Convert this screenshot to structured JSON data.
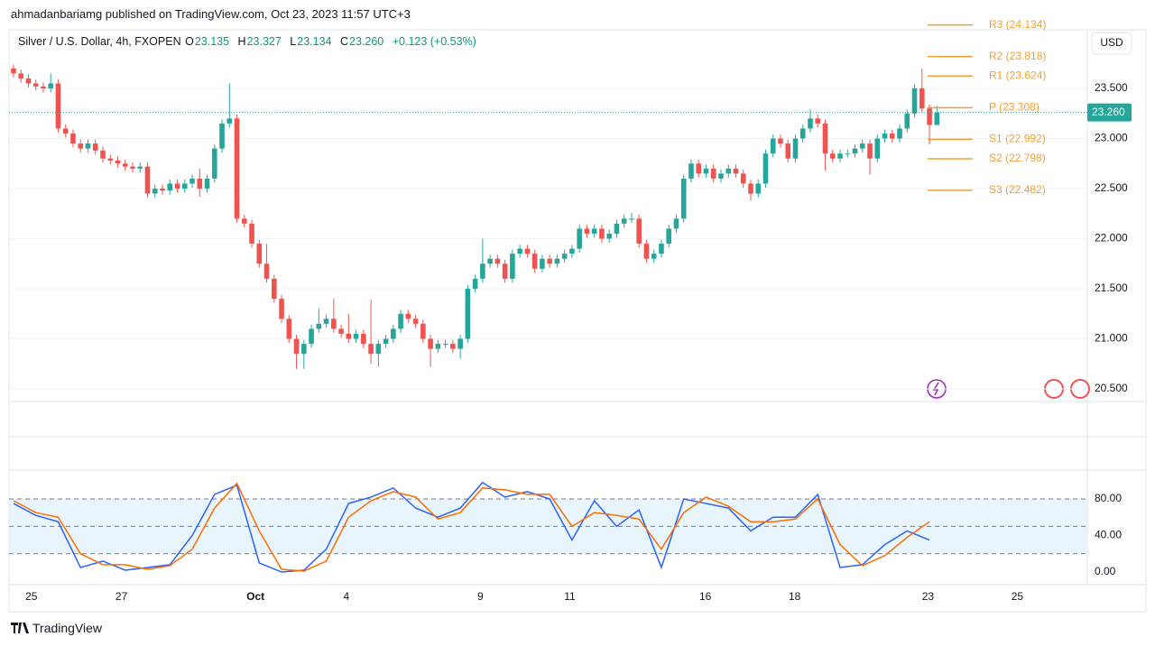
{
  "header": {
    "published": "ahmadanbariamg published on TradingView.com, Oct 23, 2023 11:57 UTC+3",
    "footer": "TradingView"
  },
  "chart_data": [
    {
      "type": "candlestick",
      "title": "Silver / U.S. Dollar, 4h, FXOPEN",
      "ohlc": [
        {
          "label": "O",
          "value": "23.135"
        },
        {
          "label": "H",
          "value": "23.327"
        },
        {
          "label": "L",
          "value": "23.134"
        },
        {
          "label": "C",
          "value": "23.260"
        }
      ],
      "change": "+0.123 (+0.53%)",
      "currency": "USD",
      "up_color": "#26a69a",
      "down_color": "#ef5350",
      "xlim": [
        -0.6,
        144.2
      ],
      "ylim": [
        20.374,
        24.086
      ],
      "yticks": [
        {
          "value": 20.5,
          "label": "20.500"
        },
        {
          "value": 21,
          "label": "21.000"
        },
        {
          "value": 21.5,
          "label": "21.500"
        },
        {
          "value": 22,
          "label": "22.000"
        },
        {
          "value": 22.5,
          "label": "22.500"
        },
        {
          "value": 23,
          "label": "23.000"
        },
        {
          "value": 23.5,
          "label": "23.500"
        }
      ],
      "last_price": {
        "value": 23.26,
        "label": "23.260"
      },
      "pivot_color": "#f0a030",
      "pivots": [
        {
          "label": "R3 (24.134)",
          "value": 24.134
        },
        {
          "label": "R2 (23.818)",
          "value": 23.818
        },
        {
          "label": "R1 (23.624)",
          "value": 23.624
        },
        {
          "label": "P (23.308)",
          "value": 23.308
        },
        {
          "label": "S1 (22.992)",
          "value": 22.992
        },
        {
          "label": "S2 (22.798)",
          "value": 22.798
        },
        {
          "label": "S3 (22.482)",
          "value": 22.482
        }
      ],
      "candles": [
        [
          23.7,
          23.74,
          23.61,
          23.65
        ],
        [
          23.65,
          23.69,
          23.56,
          23.6
        ],
        [
          23.6,
          23.64,
          23.51,
          23.55
        ],
        [
          23.55,
          23.59,
          23.48,
          23.52
        ],
        [
          23.52,
          23.56,
          23.46,
          23.5
        ],
        [
          23.5,
          23.65,
          23.46,
          23.55
        ],
        [
          23.55,
          23.59,
          23.06,
          23.1
        ],
        [
          23.1,
          23.14,
          23.01,
          23.05
        ],
        [
          23.05,
          23.09,
          22.91,
          22.95
        ],
        [
          22.95,
          22.99,
          22.86,
          22.9
        ],
        [
          22.9,
          22.99,
          22.86,
          22.95
        ],
        [
          22.95,
          22.99,
          22.84,
          22.88
        ],
        [
          22.88,
          22.92,
          22.76,
          22.8
        ],
        [
          22.8,
          22.84,
          22.74,
          22.78
        ],
        [
          22.78,
          22.82,
          22.71,
          22.75
        ],
        [
          22.75,
          22.79,
          22.68,
          22.72
        ],
        [
          22.72,
          22.76,
          22.66,
          22.7
        ],
        [
          22.7,
          22.76,
          22.66,
          22.72
        ],
        [
          22.72,
          22.76,
          22.41,
          22.45
        ],
        [
          22.45,
          22.54,
          22.41,
          22.5
        ],
        [
          22.5,
          22.54,
          22.44,
          22.48
        ],
        [
          22.48,
          22.59,
          22.44,
          22.55
        ],
        [
          22.55,
          22.59,
          22.46,
          22.5
        ],
        [
          22.5,
          22.59,
          22.46,
          22.55
        ],
        [
          22.55,
          22.64,
          22.51,
          22.6
        ],
        [
          22.6,
          22.7,
          22.42,
          22.5
        ],
        [
          22.5,
          22.64,
          22.46,
          22.6
        ],
        [
          22.6,
          22.94,
          22.56,
          22.9
        ],
        [
          22.9,
          23.19,
          22.86,
          23.15
        ],
        [
          23.15,
          23.55,
          23.11,
          23.2
        ],
        [
          23.2,
          23.24,
          22.16,
          22.2
        ],
        [
          22.2,
          22.24,
          22.11,
          22.15
        ],
        [
          22.15,
          22.19,
          21.91,
          21.95
        ],
        [
          21.95,
          21.99,
          21.71,
          21.75
        ],
        [
          21.75,
          21.95,
          21.56,
          21.6
        ],
        [
          21.6,
          21.64,
          21.36,
          21.4
        ],
        [
          21.4,
          21.44,
          21.16,
          21.2
        ],
        [
          21.2,
          21.24,
          20.96,
          21.0
        ],
        [
          21.0,
          21.04,
          20.7,
          20.85
        ],
        [
          20.85,
          20.99,
          20.7,
          20.95
        ],
        [
          20.95,
          21.14,
          20.91,
          21.1
        ],
        [
          21.1,
          21.3,
          21.06,
          21.15
        ],
        [
          21.15,
          21.24,
          21.11,
          21.2
        ],
        [
          21.2,
          21.4,
          21.06,
          21.1
        ],
        [
          21.1,
          21.14,
          21.01,
          21.05
        ],
        [
          21.05,
          21.25,
          20.96,
          21.0
        ],
        [
          21.0,
          21.09,
          20.96,
          21.05
        ],
        [
          21.05,
          21.09,
          20.91,
          20.95
        ],
        [
          20.95,
          21.39,
          20.75,
          20.85
        ],
        [
          20.85,
          20.99,
          20.72,
          20.95
        ],
        [
          20.95,
          21.04,
          20.91,
          21.0
        ],
        [
          21.0,
          21.14,
          20.96,
          21.1
        ],
        [
          21.1,
          21.29,
          21.06,
          21.25
        ],
        [
          21.25,
          21.29,
          21.16,
          21.2
        ],
        [
          21.2,
          21.24,
          21.11,
          21.15
        ],
        [
          21.15,
          21.19,
          20.96,
          21.0
        ],
        [
          21.0,
          21.04,
          20.72,
          20.9
        ],
        [
          20.9,
          20.99,
          20.86,
          20.95
        ],
        [
          20.95,
          20.99,
          20.91,
          20.95
        ],
        [
          20.95,
          20.99,
          20.86,
          20.9
        ],
        [
          20.9,
          21.04,
          20.8,
          21.0
        ],
        [
          21.0,
          21.54,
          20.96,
          21.5
        ],
        [
          21.5,
          21.64,
          21.46,
          21.6
        ],
        [
          21.6,
          22.0,
          21.56,
          21.75
        ],
        [
          21.75,
          21.84,
          21.71,
          21.8
        ],
        [
          21.8,
          21.84,
          21.71,
          21.75
        ],
        [
          21.75,
          21.79,
          21.56,
          21.6
        ],
        [
          21.6,
          21.89,
          21.56,
          21.85
        ],
        [
          21.85,
          21.94,
          21.81,
          21.9
        ],
        [
          21.9,
          21.94,
          21.81,
          21.85
        ],
        [
          21.85,
          21.89,
          21.66,
          21.7
        ],
        [
          21.7,
          21.84,
          21.66,
          21.8
        ],
        [
          21.8,
          21.84,
          21.71,
          21.75
        ],
        [
          21.75,
          21.84,
          21.71,
          21.8
        ],
        [
          21.8,
          21.89,
          21.76,
          21.85
        ],
        [
          21.85,
          21.94,
          21.81,
          21.9
        ],
        [
          21.9,
          22.14,
          21.86,
          22.1
        ],
        [
          22.1,
          22.14,
          22.01,
          22.05
        ],
        [
          22.05,
          22.14,
          22.01,
          22.1
        ],
        [
          22.1,
          22.14,
          21.96,
          22.0
        ],
        [
          22.0,
          22.09,
          21.96,
          22.05
        ],
        [
          22.05,
          22.19,
          22.01,
          22.15
        ],
        [
          22.15,
          22.24,
          22.11,
          22.2
        ],
        [
          22.2,
          22.26,
          22.16,
          22.2
        ],
        [
          22.2,
          22.24,
          21.91,
          21.95
        ],
        [
          21.95,
          21.99,
          21.76,
          21.8
        ],
        [
          21.8,
          21.89,
          21.76,
          21.85
        ],
        [
          21.85,
          21.99,
          21.81,
          21.95
        ],
        [
          21.95,
          22.14,
          21.91,
          22.1
        ],
        [
          22.1,
          22.24,
          22.06,
          22.2
        ],
        [
          22.2,
          22.64,
          22.16,
          22.6
        ],
        [
          22.6,
          22.79,
          22.56,
          22.75
        ],
        [
          22.75,
          22.79,
          22.61,
          22.65
        ],
        [
          22.65,
          22.74,
          22.61,
          22.7
        ],
        [
          22.7,
          22.74,
          22.56,
          22.6
        ],
        [
          22.6,
          22.69,
          22.56,
          22.65
        ],
        [
          22.65,
          22.74,
          22.61,
          22.7
        ],
        [
          22.7,
          22.74,
          22.61,
          22.65
        ],
        [
          22.65,
          22.69,
          22.51,
          22.55
        ],
        [
          22.55,
          22.59,
          22.38,
          22.45
        ],
        [
          22.45,
          22.59,
          22.41,
          22.55
        ],
        [
          22.55,
          22.89,
          22.51,
          22.85
        ],
        [
          22.85,
          23.04,
          22.81,
          23.0
        ],
        [
          23.0,
          23.04,
          22.91,
          22.95
        ],
        [
          22.95,
          22.99,
          22.76,
          22.8
        ],
        [
          22.8,
          23.04,
          22.76,
          23.0
        ],
        [
          23.0,
          23.14,
          22.96,
          23.1
        ],
        [
          23.1,
          23.29,
          23.06,
          23.2
        ],
        [
          23.2,
          23.24,
          23.11,
          23.15
        ],
        [
          23.15,
          23.19,
          22.68,
          22.85
        ],
        [
          22.85,
          22.89,
          22.76,
          22.8
        ],
        [
          22.8,
          22.89,
          22.76,
          22.85
        ],
        [
          22.85,
          22.89,
          22.81,
          22.85
        ],
        [
          22.85,
          22.94,
          22.81,
          22.9
        ],
        [
          22.9,
          22.99,
          22.86,
          22.95
        ],
        [
          22.95,
          22.99,
          22.64,
          22.8
        ],
        [
          22.8,
          23.04,
          22.76,
          23.0
        ],
        [
          23.0,
          23.09,
          22.96,
          23.05
        ],
        [
          23.05,
          23.09,
          22.96,
          23.0
        ],
        [
          23.0,
          23.14,
          22.96,
          23.1
        ],
        [
          23.1,
          23.29,
          23.06,
          23.25
        ],
        [
          23.25,
          23.54,
          23.21,
          23.5
        ],
        [
          23.5,
          23.7,
          23.26,
          23.3
        ],
        [
          23.3,
          23.34,
          22.94,
          23.135
        ],
        [
          23.135,
          23.327,
          23.134,
          23.26
        ]
      ]
    },
    {
      "type": "line",
      "xlim": [
        -0.6,
        144.2
      ],
      "ylim": [
        -13.8,
        110.6
      ],
      "yticks": [
        {
          "value": 0,
          "label": "0.00"
        },
        {
          "value": 40,
          "label": "40.00"
        },
        {
          "value": 80,
          "label": "80.00"
        }
      ],
      "xticks": [
        {
          "value": 2.4,
          "label": "25"
        },
        {
          "value": 14.5,
          "label": "27"
        },
        {
          "value": 32.5,
          "label": "Oct"
        },
        {
          "value": 44.7,
          "label": "4"
        },
        {
          "value": 62.7,
          "label": "9"
        },
        {
          "value": 74.7,
          "label": "11"
        },
        {
          "value": 92.9,
          "label": "16"
        },
        {
          "value": 104.9,
          "label": "18"
        },
        {
          "value": 122.8,
          "label": "23"
        },
        {
          "value": 134.8,
          "label": "25"
        }
      ],
      "band": [
        20,
        80
      ],
      "band_color": "#e3f2fd",
      "hlines": [
        20,
        50,
        80
      ],
      "x": [
        0,
        3,
        6,
        9,
        12,
        15,
        18,
        21,
        24,
        27,
        30,
        33,
        36,
        39,
        42,
        45,
        48,
        51,
        54,
        57,
        60,
        63,
        66,
        69,
        72,
        75,
        78,
        81,
        84,
        87,
        90,
        93,
        96,
        99,
        102,
        105,
        108,
        111,
        114,
        117,
        120,
        123
      ],
      "series": [
        {
          "color": "#2962ff",
          "values": [
            75,
            62,
            55,
            5,
            12,
            2,
            5,
            8,
            40,
            85,
            95,
            10,
            0,
            2,
            25,
            75,
            82,
            92,
            70,
            60,
            70,
            98,
            82,
            88,
            80,
            35,
            78,
            50,
            68,
            5,
            80,
            75,
            70,
            45,
            60,
            60,
            85,
            5,
            8,
            30,
            45,
            35
          ]
        },
        {
          "color": "#ff6d00",
          "values": [
            78,
            65,
            60,
            20,
            8,
            8,
            3,
            7,
            25,
            70,
            97,
            45,
            3,
            1,
            12,
            60,
            78,
            88,
            82,
            58,
            65,
            92,
            90,
            85,
            85,
            50,
            65,
            62,
            58,
            25,
            65,
            82,
            72,
            55,
            55,
            58,
            80,
            30,
            7,
            18,
            38,
            55
          ]
        }
      ]
    }
  ]
}
